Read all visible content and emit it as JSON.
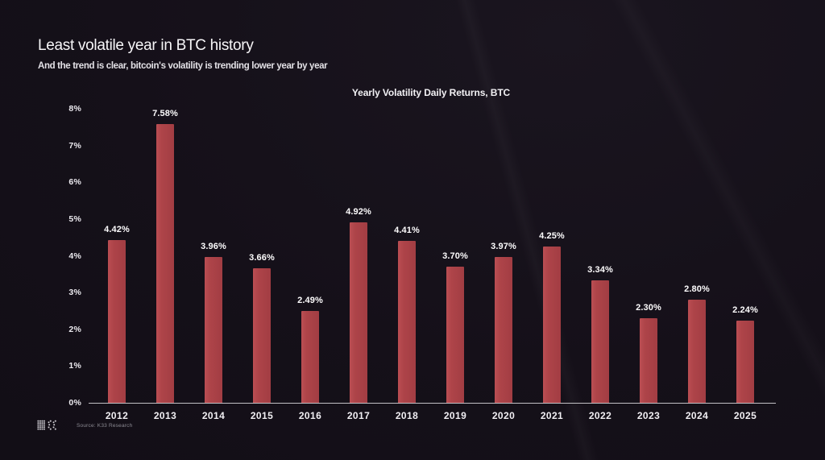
{
  "header": {
    "title": "Least volatile year in BTC history",
    "subtitle": "And the trend is clear, bitcoin's volatility is trending lower year by year"
  },
  "chart_data": {
    "type": "bar",
    "title": "Yearly Volatility Daily Returns, BTC",
    "categories": [
      "2012",
      "2013",
      "2014",
      "2015",
      "2016",
      "2017",
      "2018",
      "2019",
      "2020",
      "2021",
      "2022",
      "2023",
      "2024",
      "2025"
    ],
    "values": [
      4.42,
      7.58,
      3.96,
      3.66,
      2.49,
      4.92,
      4.41,
      3.7,
      3.97,
      4.25,
      3.34,
      2.3,
      2.8,
      2.24
    ],
    "value_labels": [
      "4.42%",
      "7.58%",
      "3.96%",
      "3.66%",
      "2.49%",
      "4.92%",
      "4.41%",
      "3.70%",
      "3.97%",
      "4.25%",
      "3.34%",
      "2.30%",
      "2.80%",
      "2.24%"
    ],
    "xlabel": "",
    "ylabel": "",
    "ylim": [
      0,
      8
    ],
    "yticks": [
      "0%",
      "1%",
      "2%",
      "3%",
      "4%",
      "5%",
      "6%",
      "7%",
      "8%"
    ],
    "grid": false,
    "legend": false,
    "bar_color": "#ae4449",
    "background": "#151019",
    "text_color": "#f5f4f6"
  },
  "footer": {
    "source": "Source: K33 Research",
    "logo": "k33-logo"
  }
}
